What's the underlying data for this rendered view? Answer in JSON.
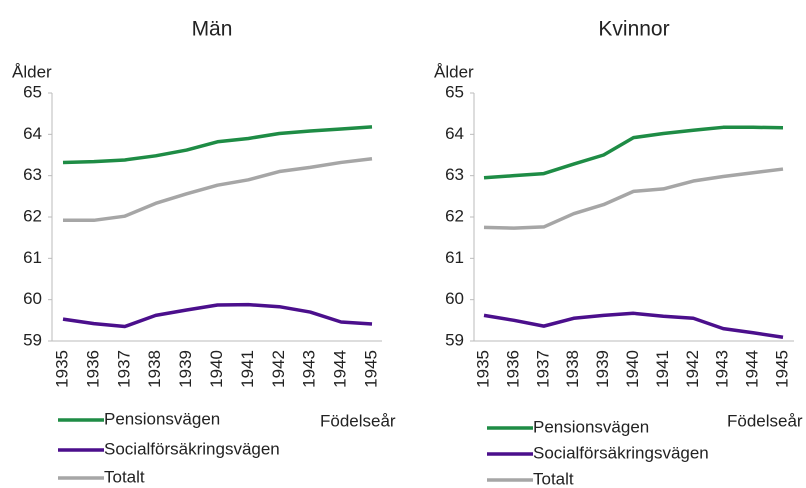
{
  "chart_data": [
    {
      "type": "line",
      "title": "Män",
      "y_label": "Ålder",
      "x_label": "Födelseår",
      "categories": [
        "1935",
        "1936",
        "1937",
        "1938",
        "1939",
        "1940",
        "1941",
        "1942",
        "1943",
        "1944",
        "1945"
      ],
      "series": [
        {
          "name": "Pensionsvägen",
          "color": "#1e8c45",
          "values": [
            63.32,
            63.34,
            63.38,
            63.48,
            63.62,
            63.82,
            63.9,
            64.02,
            64.08,
            64.13,
            64.18
          ]
        },
        {
          "name": "Socialförsäkringsvägen",
          "color": "#4b0f8c",
          "values": [
            59.53,
            59.42,
            59.35,
            59.62,
            59.75,
            59.87,
            59.88,
            59.83,
            59.7,
            59.46,
            59.41
          ]
        },
        {
          "name": "Totalt",
          "color": "#a6a6a6",
          "values": [
            61.92,
            61.92,
            62.02,
            62.33,
            62.56,
            62.77,
            62.9,
            63.1,
            63.2,
            63.32,
            63.41
          ]
        }
      ],
      "ylim": [
        59,
        65
      ],
      "yticks": [
        59,
        60,
        61,
        62,
        63,
        64,
        65
      ],
      "grid": false,
      "legend": "bottom-left"
    },
    {
      "type": "line",
      "title": "Kvinnor",
      "y_label": "Ålder",
      "x_label": "Födelseår",
      "categories": [
        "1935",
        "1936",
        "1937",
        "1938",
        "1939",
        "1940",
        "1941",
        "1942",
        "1943",
        "1944",
        "1945"
      ],
      "series": [
        {
          "name": "Pensionsvägen",
          "color": "#1e8c45",
          "values": [
            62.95,
            63.0,
            63.05,
            63.28,
            63.5,
            63.92,
            64.02,
            64.1,
            64.17,
            64.17,
            64.16
          ]
        },
        {
          "name": "Socialförsäkringsvägen",
          "color": "#4b0f8c",
          "values": [
            59.62,
            59.5,
            59.36,
            59.55,
            59.62,
            59.67,
            59.6,
            59.55,
            59.3,
            59.2,
            59.09
          ]
        },
        {
          "name": "Totalt",
          "color": "#a6a6a6",
          "values": [
            61.75,
            61.73,
            61.76,
            62.08,
            62.3,
            62.62,
            62.68,
            62.87,
            62.98,
            63.07,
            63.16
          ]
        }
      ],
      "ylim": [
        59,
        65
      ],
      "yticks": [
        59,
        60,
        61,
        62,
        63,
        64,
        65
      ],
      "grid": false,
      "legend": "bottom-left"
    }
  ]
}
